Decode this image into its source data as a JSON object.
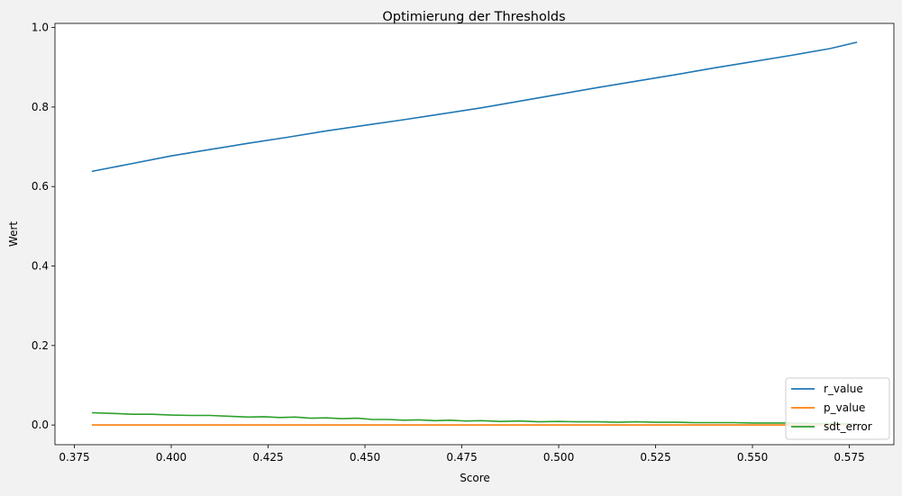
{
  "chart_data": {
    "type": "line",
    "title": "Optimierung der Thresholds",
    "xlabel": "Score",
    "ylabel": "Wert",
    "xlim": [
      0.37,
      0.5865
    ],
    "ylim": [
      -0.0495,
      1.0104
    ],
    "x_ticks": [
      0.375,
      0.4,
      0.425,
      0.45,
      0.475,
      0.5,
      0.525,
      0.55,
      0.575
    ],
    "x_tick_labels": [
      "0.375",
      "0.400",
      "0.425",
      "0.450",
      "0.475",
      "0.500",
      "0.525",
      "0.550",
      "0.575"
    ],
    "y_ticks": [
      0.0,
      0.2,
      0.4,
      0.6,
      0.8,
      1.0
    ],
    "y_tick_labels": [
      "0.0",
      "0.2",
      "0.4",
      "0.6",
      "0.8",
      "1.0"
    ],
    "grid": false,
    "legend_position": "bottom-right",
    "series": [
      {
        "name": "r_value",
        "color": "#1f77b4",
        "x": [
          0.3795,
          0.39,
          0.4,
          0.41,
          0.42,
          0.43,
          0.44,
          0.45,
          0.46,
          0.47,
          0.48,
          0.49,
          0.5,
          0.51,
          0.52,
          0.53,
          0.54,
          0.55,
          0.56,
          0.57,
          0.577
        ],
        "y": [
          0.638,
          0.658,
          0.677,
          0.693,
          0.709,
          0.724,
          0.74,
          0.754,
          0.768,
          0.783,
          0.798,
          0.815,
          0.832,
          0.849,
          0.865,
          0.881,
          0.898,
          0.914,
          0.93,
          0.947,
          0.963
        ]
      },
      {
        "name": "p_value",
        "color": "#ff7f0e",
        "x": [
          0.3795,
          0.4,
          0.425,
          0.45,
          0.475,
          0.5,
          0.525,
          0.55,
          0.577
        ],
        "y": [
          0.0,
          0.0,
          0.0,
          0.0,
          0.0,
          0.0,
          0.0,
          0.0,
          0.0
        ]
      },
      {
        "name": "sdt_error",
        "color": "#2ca02c",
        "x": [
          0.3795,
          0.385,
          0.39,
          0.395,
          0.4,
          0.405,
          0.41,
          0.415,
          0.42,
          0.424,
          0.428,
          0.432,
          0.436,
          0.44,
          0.444,
          0.448,
          0.452,
          0.456,
          0.46,
          0.464,
          0.468,
          0.472,
          0.476,
          0.48,
          0.485,
          0.49,
          0.495,
          0.5,
          0.505,
          0.51,
          0.515,
          0.52,
          0.525,
          0.53,
          0.535,
          0.54,
          0.545,
          0.55,
          0.555,
          0.56,
          0.565,
          0.57,
          0.577
        ],
        "y": [
          0.031,
          0.029,
          0.027,
          0.027,
          0.025,
          0.024,
          0.024,
          0.022,
          0.02,
          0.021,
          0.019,
          0.02,
          0.017,
          0.018,
          0.016,
          0.017,
          0.014,
          0.014,
          0.012,
          0.013,
          0.011,
          0.012,
          0.01,
          0.011,
          0.009,
          0.01,
          0.008,
          0.009,
          0.008,
          0.008,
          0.007,
          0.008,
          0.007,
          0.007,
          0.006,
          0.006,
          0.006,
          0.005,
          0.005,
          0.005,
          0.004,
          0.004,
          0.003
        ]
      }
    ]
  }
}
